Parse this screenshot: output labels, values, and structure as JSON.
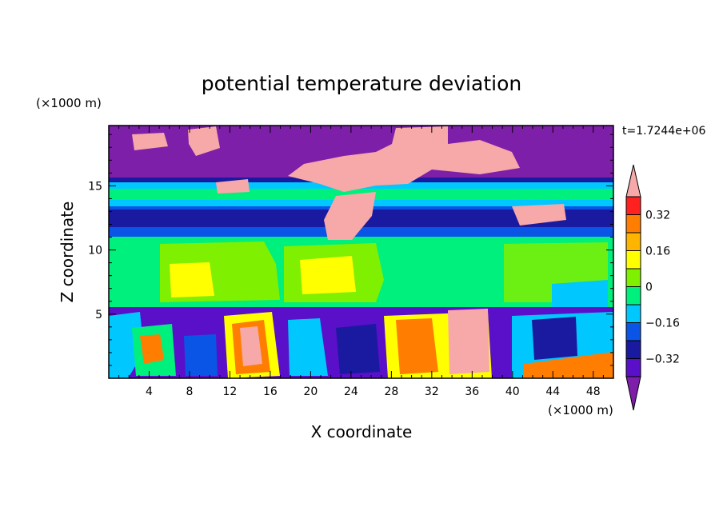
{
  "chart_data": {
    "type": "heatmap",
    "title": "potential temperature deviation",
    "xlabel": "X coordinate",
    "ylabel": "Z coordinate",
    "x_units": "(×1000 m)",
    "y_units": "(×1000 m)",
    "time_label": "t=1.7244e+06",
    "xlim": [
      0,
      50
    ],
    "ylim": [
      0,
      19.7
    ],
    "x_ticks": [
      4,
      8,
      12,
      16,
      20,
      24,
      28,
      32,
      36,
      40,
      44,
      48
    ],
    "y_ticks": [
      5,
      10,
      15
    ],
    "colorbar": {
      "levels": [
        -0.4,
        -0.32,
        -0.24,
        -0.16,
        -0.08,
        0,
        0.08,
        0.16,
        0.24,
        0.32,
        0.4
      ],
      "labels": [
        "0.32",
        "0.16",
        "0",
        "−0.16",
        "−0.32"
      ],
      "label_values": [
        0.32,
        0.16,
        0,
        -0.16,
        -0.32
      ],
      "colors": [
        "#7d1fa8",
        "#5a0fc8",
        "#1a1aa0",
        "#0a55e6",
        "#00c8ff",
        "#00f07d",
        "#7ff000",
        "#ffff00",
        "#ffb400",
        "#ff7d00",
        "#ff2020",
        "#f7a8a8"
      ]
    }
  }
}
